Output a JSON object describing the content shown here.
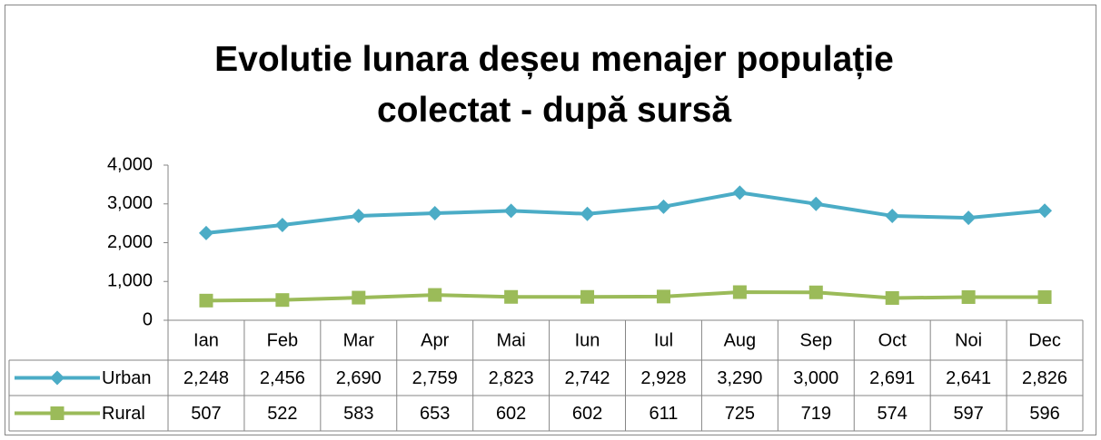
{
  "chart_data": {
    "type": "line",
    "title": "Evolutie lunara deșeu menajer populație colectat - după sursă",
    "categories": [
      "Ian",
      "Feb",
      "Mar",
      "Apr",
      "Mai",
      "Iun",
      "Iul",
      "Aug",
      "Sep",
      "Oct",
      "Noi",
      "Dec"
    ],
    "series": [
      {
        "name": "Urban",
        "color": "#4bacc6",
        "marker": "diamond",
        "values": [
          2248,
          2456,
          2690,
          2759,
          2823,
          2742,
          2928,
          3290,
          3000,
          2691,
          2641,
          2826
        ],
        "value_labels": [
          "2,248",
          "2,456",
          "2,690",
          "2,759",
          "2,823",
          "2,742",
          "2,928",
          "3,290",
          "3,000",
          "2,691",
          "2,641",
          "2,826"
        ]
      },
      {
        "name": "Rural",
        "color": "#9bbb59",
        "marker": "square",
        "values": [
          507,
          522,
          583,
          653,
          602,
          602,
          611,
          725,
          719,
          574,
          597,
          596
        ]
      }
    ],
    "ylim": [
      0,
      4000
    ],
    "yticks": [
      0,
      {
        "value": 1000,
        "label": "1,000"
      },
      {
        "value": 2000,
        "label": "2,000"
      },
      {
        "value": 3000,
        "label": "3,000"
      },
      {
        "value": 4000,
        "label": "4,000"
      }
    ],
    "grid": false
  }
}
